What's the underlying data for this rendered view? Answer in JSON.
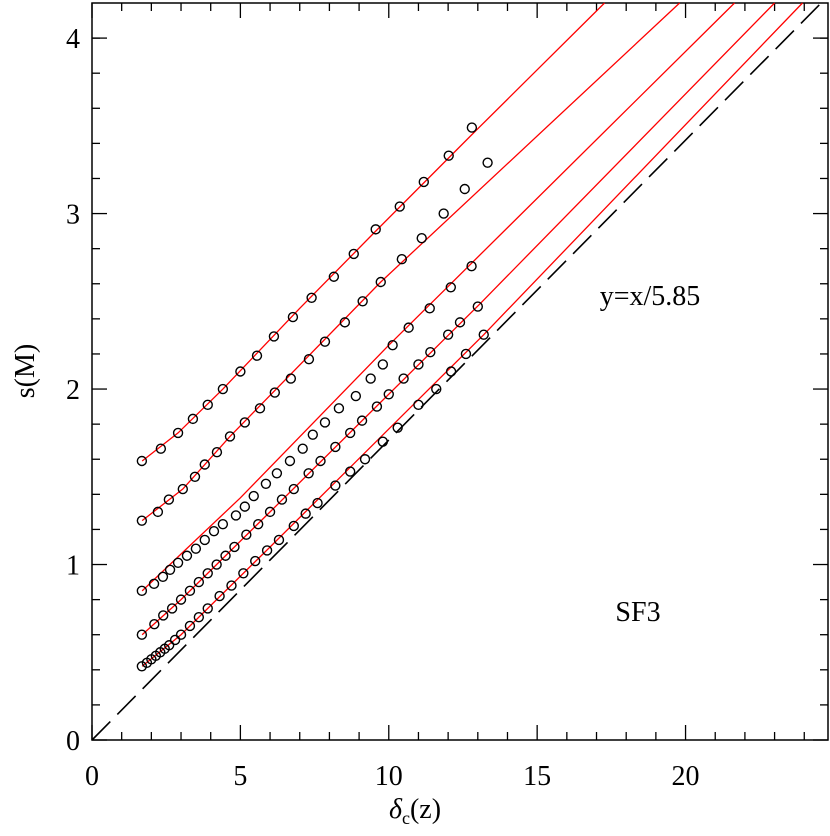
{
  "chart_data": {
    "type": "line",
    "xlabel": [
      "δ",
      "c",
      "(z)"
    ],
    "ylabel": "s(M)",
    "annotations": [
      "y=x/5.85",
      "SF3"
    ],
    "xlim": [
      0,
      24.8
    ],
    "ylim": [
      0,
      4.2
    ],
    "xticks": [
      0,
      5,
      10,
      15,
      20
    ],
    "yticks": [
      0,
      1,
      2,
      3,
      4
    ],
    "xminorticks": [
      1,
      2,
      3,
      4,
      6,
      7,
      8,
      9,
      11,
      12,
      13,
      14,
      16,
      17,
      18,
      19,
      21,
      22,
      23,
      24
    ],
    "yminorticks": [
      0.2,
      0.4,
      0.6,
      0.8,
      1.2,
      1.4,
      1.6,
      1.8,
      2.2,
      2.4,
      2.6,
      2.8,
      3.2,
      3.4,
      3.6,
      3.8,
      4.0
    ],
    "lines": [
      {
        "color": "#ff0000",
        "dash": false,
        "x": [
          1.69,
          2.9,
          4.41,
          7,
          9.56,
          12.8,
          17.27
        ],
        "y": [
          1.59,
          1.75,
          2.0,
          2.46,
          2.9,
          3.45,
          4.2
        ]
      },
      {
        "color": "#ff0000",
        "dash": false,
        "x": [
          1.69,
          3.06,
          4.65,
          9.73,
          19.8
        ],
        "y": [
          1.25,
          1.43,
          1.73,
          2.61,
          4.2
        ]
      },
      {
        "color": "#ff0000",
        "dash": false,
        "x": [
          1.69,
          3,
          5,
          10,
          21.65
        ],
        "y": [
          0.85,
          1.06,
          1.38,
          2.25,
          4.2
        ]
      },
      {
        "color": "#ff0000",
        "dash": false,
        "x": [
          1.69,
          3,
          6,
          13.1,
          23
        ],
        "y": [
          0.6,
          0.8,
          1.3,
          2.49,
          4.2
        ]
      },
      {
        "color": "#ff0000",
        "dash": false,
        "x": [
          1.69,
          3,
          6,
          13.2,
          23.94
        ],
        "y": [
          0.42,
          0.6,
          1.1,
          2.31,
          4.2
        ]
      },
      {
        "color": "#000000",
        "dash": true,
        "x": [
          0,
          24.57
        ],
        "y": [
          0,
          4.2
        ]
      }
    ],
    "points": [
      {
        "color": "#000000",
        "x": [
          1.68,
          2.32,
          2.9,
          3.4,
          3.9,
          4.41,
          5.0,
          5.56,
          6.13,
          6.77,
          7.4,
          8.15,
          8.82,
          9.56,
          10.37,
          11.18,
          12.02,
          12.8
        ],
        "y": [
          1.59,
          1.66,
          1.75,
          1.83,
          1.91,
          2.0,
          2.1,
          2.19,
          2.3,
          2.41,
          2.52,
          2.64,
          2.77,
          2.91,
          3.04,
          3.18,
          3.33,
          3.49
        ]
      },
      {
        "color": "#000000",
        "x": [
          1.68,
          2.22,
          2.59,
          3.06,
          3.47,
          3.8,
          4.21,
          4.65,
          5.15,
          5.66,
          6.16,
          6.7,
          7.31,
          7.85,
          8.52,
          9.12,
          9.73,
          10.44,
          11.11,
          11.85,
          12.56,
          13.33
        ],
        "y": [
          1.25,
          1.3,
          1.37,
          1.43,
          1.5,
          1.57,
          1.64,
          1.73,
          1.81,
          1.89,
          1.98,
          2.06,
          2.17,
          2.27,
          2.38,
          2.5,
          2.61,
          2.74,
          2.86,
          3.0,
          3.14,
          3.29
        ]
      },
      {
        "color": "#000000",
        "x": [
          1.68,
          2.09,
          2.39,
          2.63,
          2.9,
          3.2,
          3.5,
          3.8,
          4.11,
          4.41,
          4.85,
          5.15,
          5.45,
          5.86,
          6.23,
          6.67,
          7.1,
          7.44,
          7.85,
          8.32,
          8.89,
          9.39,
          9.8,
          10.13,
          10.67,
          11.38,
          12.09,
          12.79
        ],
        "y": [
          0.85,
          0.89,
          0.93,
          0.97,
          1.01,
          1.05,
          1.09,
          1.14,
          1.19,
          1.23,
          1.28,
          1.33,
          1.39,
          1.46,
          1.52,
          1.59,
          1.66,
          1.74,
          1.81,
          1.89,
          1.96,
          2.06,
          2.14,
          2.25,
          2.35,
          2.46,
          2.58,
          2.7
        ]
      },
      {
        "color": "#000000",
        "x": [
          1.68,
          2.1,
          2.4,
          2.7,
          3.0,
          3.3,
          3.6,
          3.9,
          4.2,
          4.5,
          4.8,
          5.2,
          5.6,
          6.0,
          6.4,
          6.8,
          7.3,
          7.7,
          8.2,
          8.7,
          9.1,
          9.6,
          10.0,
          10.5,
          11.0,
          11.4,
          12.0,
          12.4,
          13.0
        ],
        "y": [
          0.6,
          0.66,
          0.71,
          0.75,
          0.8,
          0.85,
          0.9,
          0.95,
          1.0,
          1.05,
          1.1,
          1.17,
          1.23,
          1.3,
          1.37,
          1.43,
          1.52,
          1.59,
          1.67,
          1.75,
          1.82,
          1.9,
          1.97,
          2.06,
          2.14,
          2.21,
          2.31,
          2.38,
          2.47
        ]
      },
      {
        "color": "#000000",
        "x": [
          1.68,
          1.85,
          2.0,
          2.15,
          2.3,
          2.45,
          2.6,
          2.8,
          3.0,
          3.3,
          3.6,
          3.9,
          4.3,
          4.7,
          5.1,
          5.5,
          5.9,
          6.3,
          6.8,
          7.2,
          7.6,
          8.2,
          8.7,
          9.2,
          9.8,
          10.3,
          11.0,
          11.6,
          12.1,
          12.6,
          13.2
        ],
        "y": [
          0.42,
          0.44,
          0.46,
          0.48,
          0.5,
          0.52,
          0.54,
          0.57,
          0.6,
          0.65,
          0.7,
          0.75,
          0.82,
          0.88,
          0.95,
          1.02,
          1.08,
          1.14,
          1.22,
          1.29,
          1.35,
          1.45,
          1.53,
          1.6,
          1.7,
          1.78,
          1.91,
          2.0,
          2.1,
          2.2,
          2.31
        ]
      }
    ]
  }
}
